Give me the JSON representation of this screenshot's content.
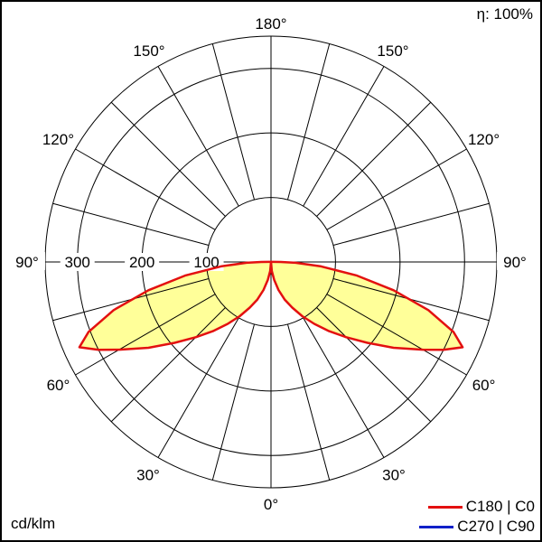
{
  "chart_data": {
    "type": "polar",
    "title": "",
    "efficiency_label": "η: 100%",
    "unit_label": "cd/klm",
    "angle_labels_left": [
      "180°",
      "150°",
      "120°",
      "90°",
      "60°",
      "30°",
      "0°"
    ],
    "angle_labels": {
      "top": "180°",
      "bottom": "0°",
      "left_150": "150°",
      "right_150": "150°",
      "left_120": "120°",
      "right_120": "120°",
      "left_90": "90°",
      "right_90": "90°",
      "left_60": "60°",
      "right_60": "60°",
      "left_30": "30°",
      "right_30": "30°"
    },
    "radial_ticks": [
      100,
      200,
      300
    ],
    "radial_tick_labels": [
      "100",
      "200",
      "300"
    ],
    "r_max": 350,
    "angle_grid_step_deg": 15,
    "fill_color": "#ffff99",
    "series": [
      {
        "name": "C180 | C0",
        "color": "#e31010",
        "visible": true,
        "points": [
          {
            "angle": 0,
            "value": 0
          },
          {
            "angle": 5,
            "value": 14
          },
          {
            "angle": 10,
            "value": 28
          },
          {
            "angle": 15,
            "value": 45
          },
          {
            "angle": 20,
            "value": 62
          },
          {
            "angle": 25,
            "value": 78
          },
          {
            "angle": 30,
            "value": 97
          },
          {
            "angle": 35,
            "value": 117
          },
          {
            "angle": 40,
            "value": 140
          },
          {
            "angle": 45,
            "value": 165
          },
          {
            "angle": 50,
            "value": 195
          },
          {
            "angle": 55,
            "value": 232
          },
          {
            "angle": 60,
            "value": 272
          },
          {
            "angle": 63,
            "value": 300
          },
          {
            "angle": 66,
            "value": 325
          },
          {
            "angle": 69,
            "value": 303
          },
          {
            "angle": 73,
            "value": 255
          },
          {
            "angle": 77,
            "value": 195
          },
          {
            "angle": 81,
            "value": 135
          },
          {
            "angle": 85,
            "value": 78
          },
          {
            "angle": 88,
            "value": 38
          },
          {
            "angle": 90,
            "value": 15
          },
          {
            "angle": 92,
            "value": 3
          }
        ]
      },
      {
        "name": "C270 | C90",
        "color": "#1020c8",
        "visible": false,
        "points": []
      }
    ],
    "grid": true,
    "legend_position": "bottom-right"
  }
}
